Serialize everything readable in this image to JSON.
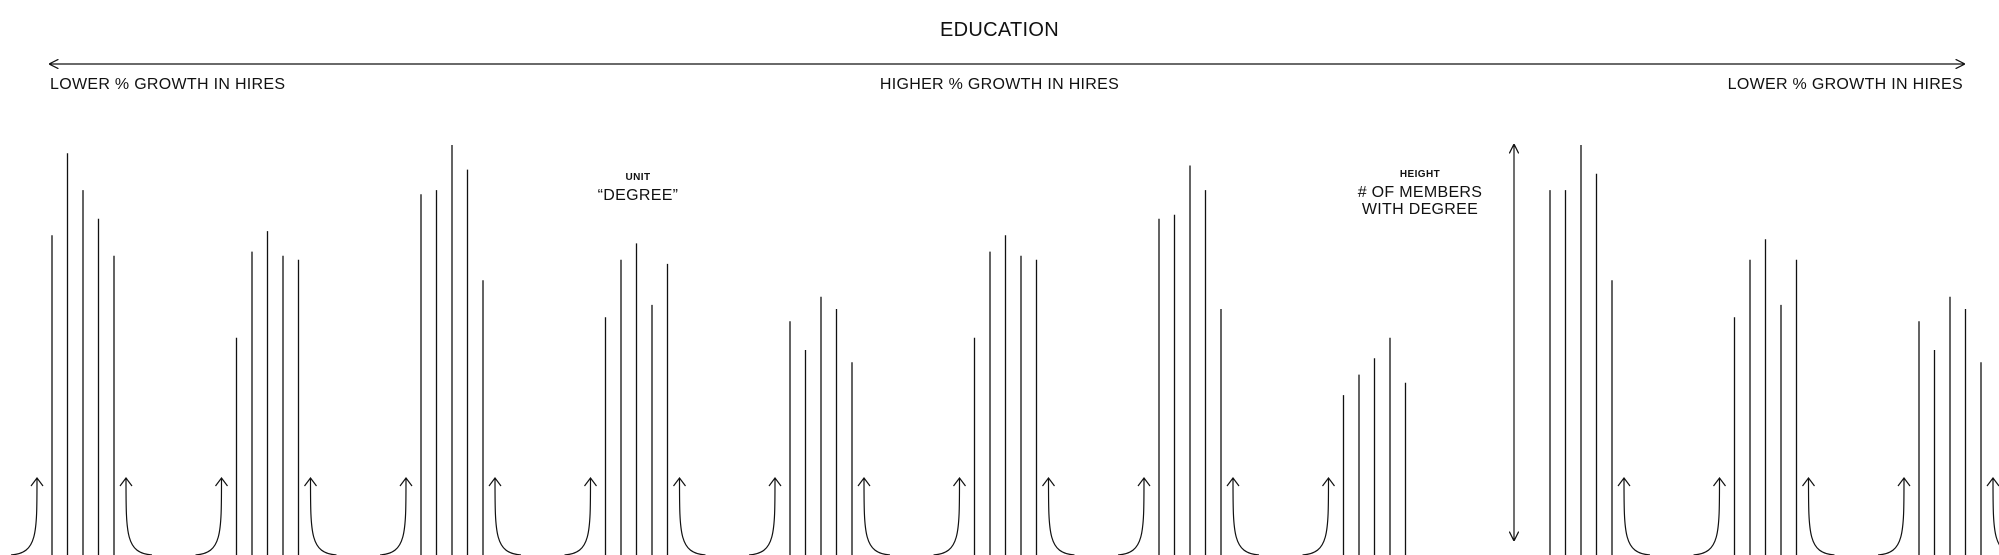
{
  "title": "EDUCATION",
  "axis": {
    "left_label": "LOWER % GROWTH IN HIRES",
    "center_label": "HIGHER % GROWTH IN HIRES",
    "right_label": "LOWER % GROWTH IN HIRES"
  },
  "legend": {
    "unit_key": "UNIT",
    "unit_value": "“DEGREE”",
    "height_key": "HEIGHT",
    "height_value": "# OF MEMBERS WITH DEGREE"
  },
  "colors": {
    "ink": "#111111",
    "background": "#ffffff"
  },
  "chart_data": {
    "type": "bar",
    "title": "EDUCATION",
    "unit": "DEGREE",
    "height_measure": "# OF MEMBERS WITH DEGREE",
    "x_axis_direction": [
      "LOWER % GROWTH IN HIRES",
      "HIGHER % GROWTH IN HIRES",
      "LOWER % GROWTH IN HIRES"
    ],
    "groups": [
      {
        "values": [
          0.78,
          0.98,
          0.89,
          0.82,
          0.73
        ]
      },
      {
        "values": [
          0.53,
          0.74,
          0.79,
          0.73,
          0.72
        ]
      },
      {
        "values": [
          0.88,
          0.89,
          1.0,
          0.94,
          0.67
        ]
      },
      {
        "values": [
          0.58,
          0.72,
          0.76,
          0.61,
          0.71
        ]
      },
      {
        "values": [
          0.57,
          0.5,
          0.63,
          0.6,
          0.47
        ]
      },
      {
        "values": [
          0.53,
          0.74,
          0.78,
          0.73,
          0.72
        ]
      },
      {
        "values": [
          0.82,
          0.83,
          0.95,
          0.89,
          0.6
        ]
      },
      {
        "values": [
          0.39,
          0.44,
          0.48,
          0.53,
          0.42
        ]
      },
      {
        "values": [
          0.89,
          0.89,
          1.0,
          0.93,
          0.67
        ]
      },
      {
        "values": [
          0.58,
          0.72,
          0.77,
          0.61,
          0.72
        ]
      },
      {
        "values": [
          0.57,
          0.5,
          0.63,
          0.6,
          0.47
        ]
      }
    ]
  }
}
